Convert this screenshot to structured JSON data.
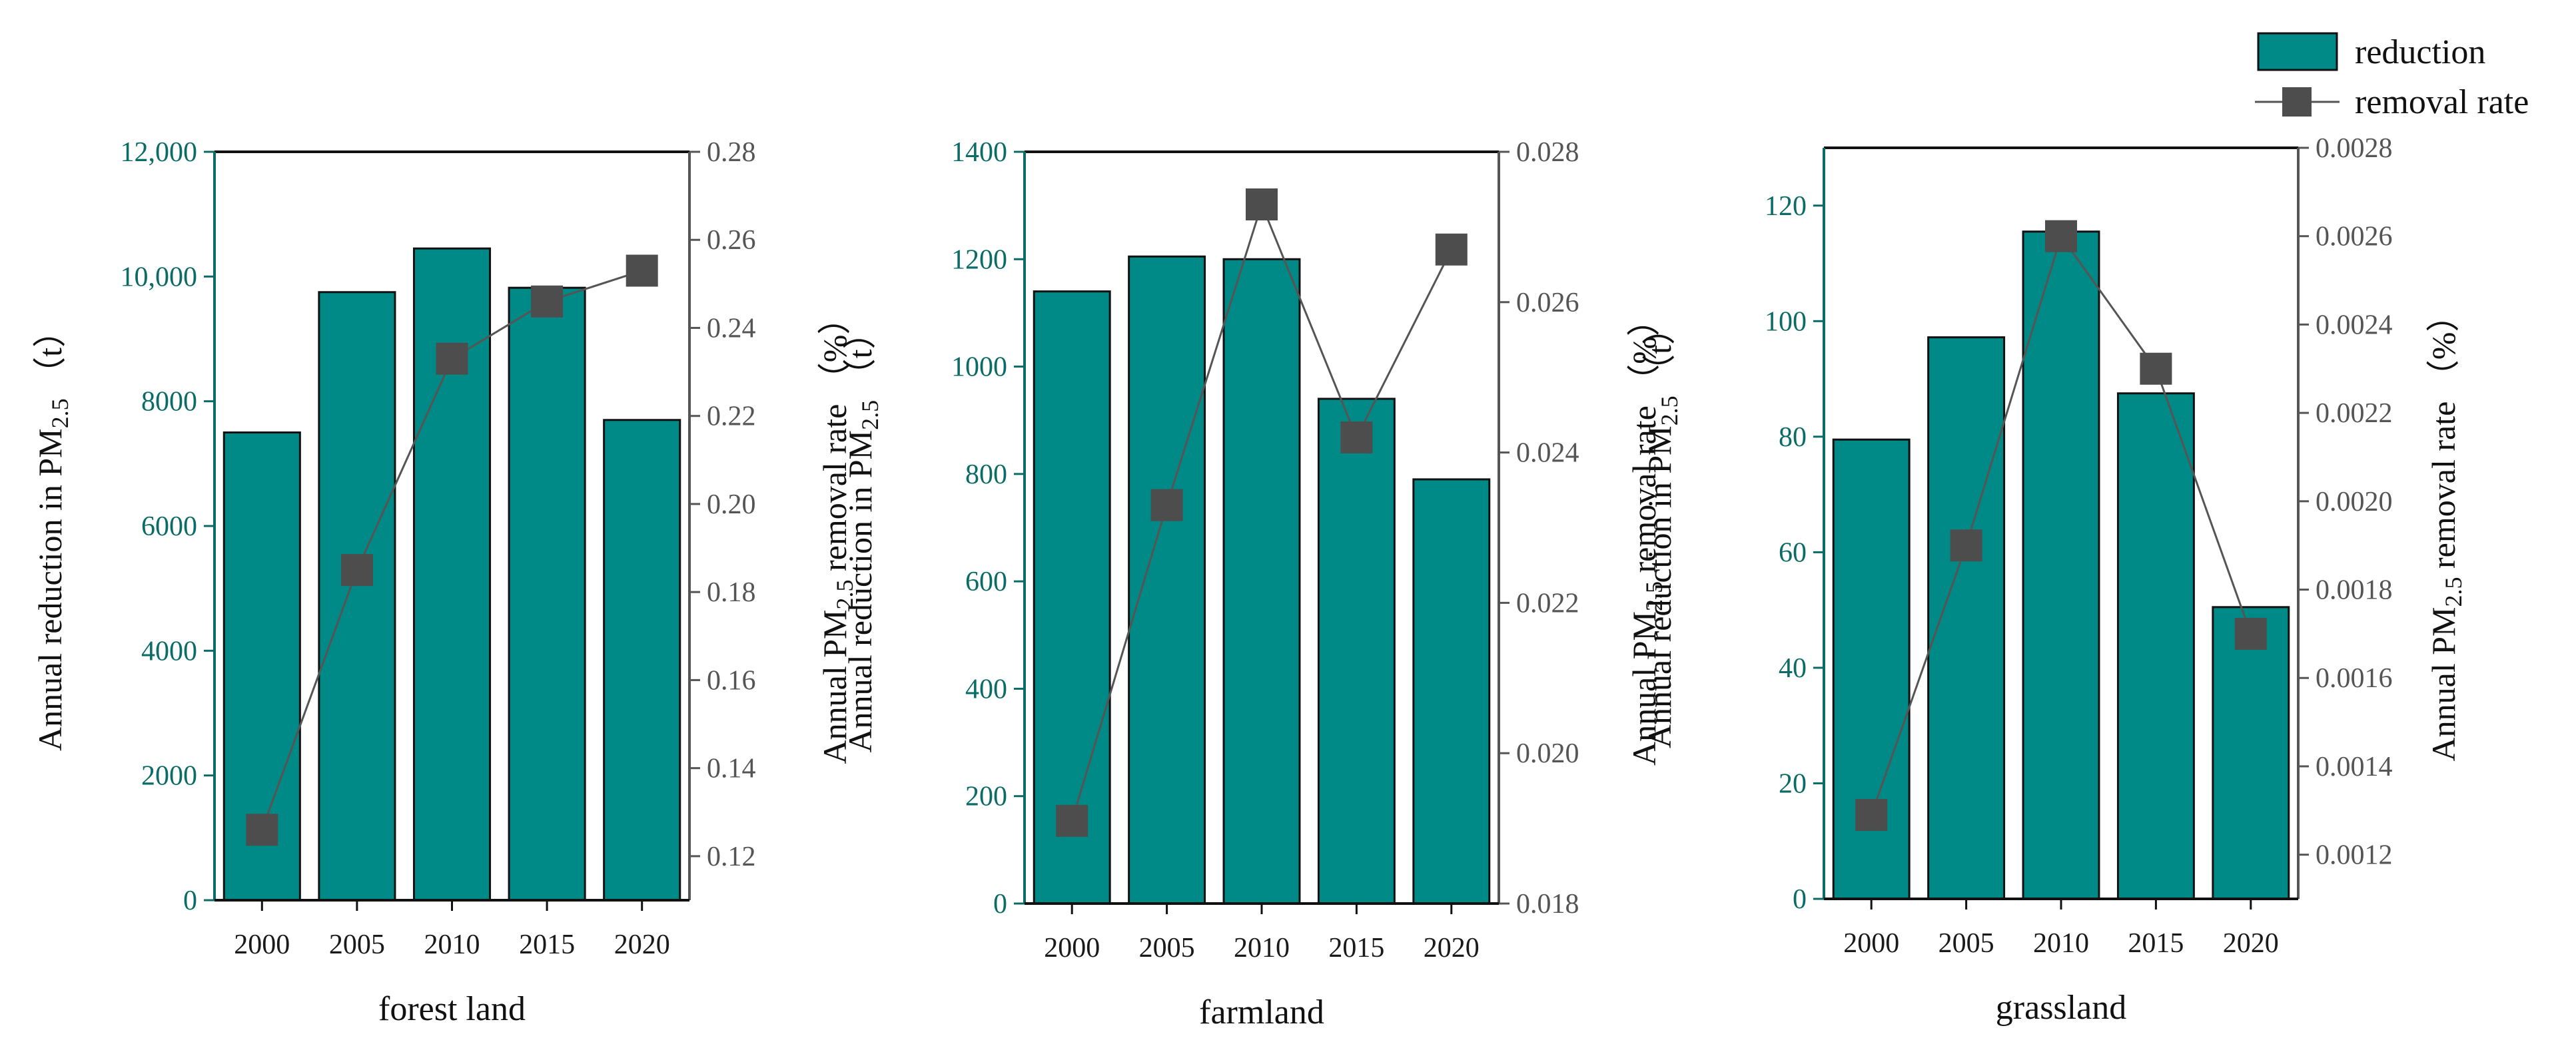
{
  "legend": {
    "bar_label": "reduction",
    "line_label": "removal rate"
  },
  "colors": {
    "bar_fill": "#008a87",
    "line_color": "#555555",
    "marker_color": "#4d4d4d",
    "left_axis_color": "#0b6b66",
    "right_axis_color": "#555555"
  },
  "chart_data": [
    {
      "type": "bar",
      "title": "forest land",
      "categories": [
        "2000",
        "2005",
        "2010",
        "2015",
        "2020"
      ],
      "series": [
        {
          "name": "reduction",
          "axis": "left",
          "values": [
            7500,
            9750,
            10450,
            9820,
            7700
          ]
        },
        {
          "name": "removal rate",
          "axis": "right",
          "type": "line",
          "values": [
            0.126,
            0.185,
            0.233,
            0.246,
            0.253
          ]
        }
      ],
      "ylim_left": [
        0,
        12000
      ],
      "yticks_left": [
        "0",
        "2000",
        "4000",
        "6000",
        "8000",
        "10,000",
        "12,000"
      ],
      "ylim_right": [
        0.11,
        0.28
      ],
      "yticks_right": [
        "0.12",
        "0.14",
        "0.16",
        "0.18",
        "0.20",
        "0.22",
        "0.24",
        "0.26",
        "0.28"
      ],
      "ylabel_left": "Annual reduction in PM2.5 (t)",
      "ylabel_right": "Annual PM2.5 removal rate (%)"
    },
    {
      "type": "bar",
      "title": "farmland",
      "categories": [
        "2000",
        "2005",
        "2010",
        "2015",
        "2020"
      ],
      "series": [
        {
          "name": "reduction",
          "axis": "left",
          "values": [
            1140,
            1205,
            1200,
            940,
            790
          ]
        },
        {
          "name": "removal rate",
          "axis": "right",
          "type": "line",
          "values": [
            0.0191,
            0.0233,
            0.0273,
            0.0242,
            0.0267
          ]
        }
      ],
      "ylim_left": [
        0,
        1400
      ],
      "yticks_left": [
        "0",
        "200",
        "400",
        "600",
        "800",
        "1000",
        "1200",
        "1400"
      ],
      "ylim_right": [
        0.018,
        0.028
      ],
      "yticks_right": [
        "0.018",
        "0.020",
        "0.022",
        "0.024",
        "0.026",
        "0.028"
      ],
      "ylabel_left": "Annual reduction in PM2.5 (t)",
      "ylabel_right": "Annual PM2.5 removal rate (%)"
    },
    {
      "type": "bar",
      "title": "grassland",
      "categories": [
        "2000",
        "2005",
        "2010",
        "2015",
        "2020"
      ],
      "series": [
        {
          "name": "reduction",
          "axis": "left",
          "values": [
            79.5,
            97.2,
            115.5,
            87.5,
            50.5
          ]
        },
        {
          "name": "removal rate",
          "axis": "right",
          "type": "line",
          "values": [
            0.00129,
            0.0019,
            0.0026,
            0.0023,
            0.0017
          ]
        }
      ],
      "ylim_left": [
        0,
        130
      ],
      "yticks_left": [
        "0",
        "20",
        "40",
        "60",
        "80",
        "100",
        "120"
      ],
      "ylim_right": [
        0.0011,
        0.0028
      ],
      "yticks_right": [
        "0.0012",
        "0.0014",
        "0.0016",
        "0.0018",
        "0.0020",
        "0.0022",
        "0.0024",
        "0.0026",
        "0.0028"
      ],
      "ylabel_left": "Annual reduction in PM2.5 (t)",
      "ylabel_right": "Annual PM2.5 removal rate (%)"
    }
  ]
}
